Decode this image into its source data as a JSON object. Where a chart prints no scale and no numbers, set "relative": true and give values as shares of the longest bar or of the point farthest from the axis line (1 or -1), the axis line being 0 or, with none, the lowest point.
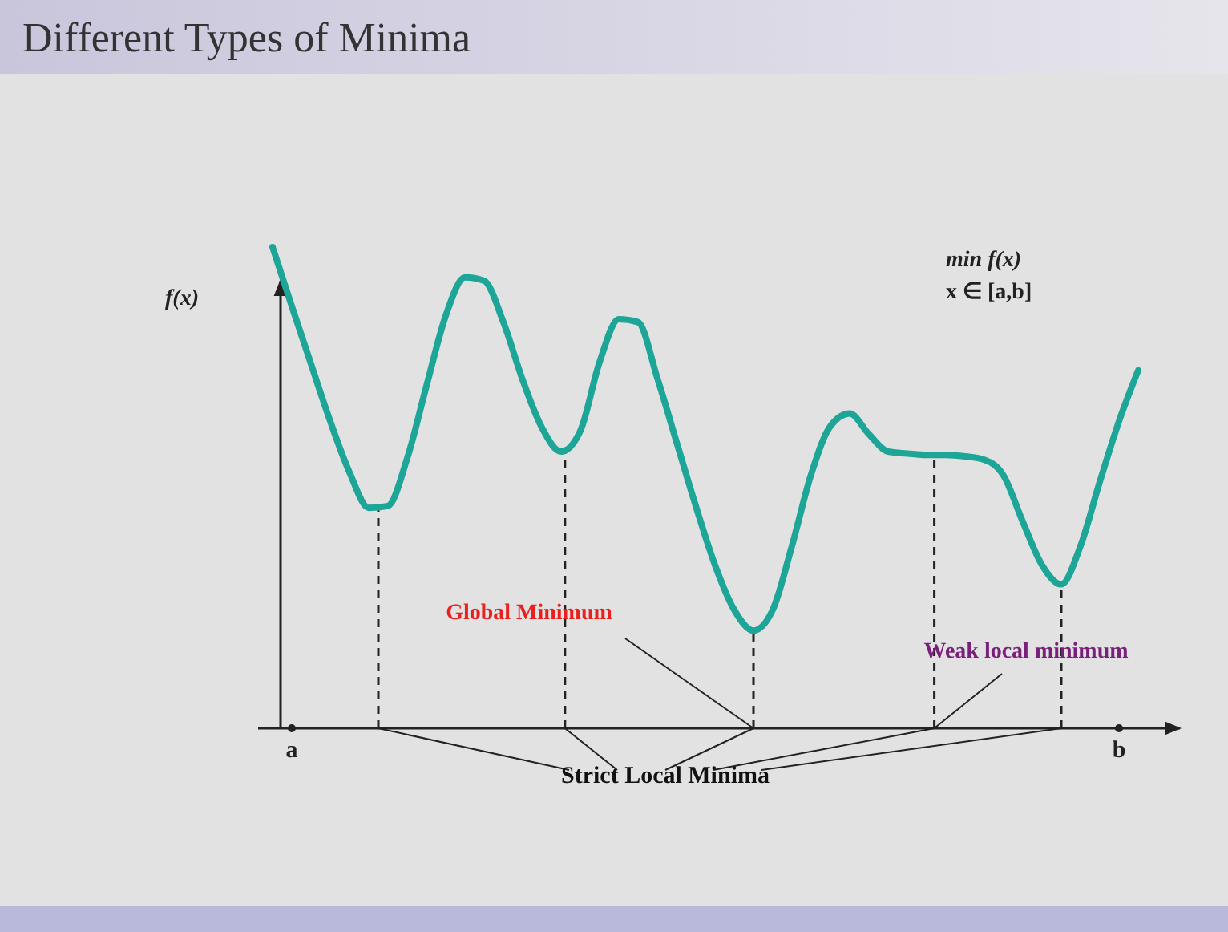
{
  "chart_data": {
    "type": "line",
    "title": "Different Types of Minima",
    "ylabel": "f(x)",
    "relative": true,
    "categories": [
      null,
      "a",
      null,
      null,
      null,
      null,
      null,
      null,
      null,
      null,
      null,
      null,
      null,
      null,
      null,
      null,
      null,
      null,
      null,
      null,
      null,
      null,
      null,
      null,
      null,
      null,
      null,
      null,
      null,
      null,
      null,
      null,
      null,
      null,
      null,
      null,
      null,
      null,
      null,
      null,
      null,
      null,
      null,
      null,
      "b",
      null
    ],
    "series": [
      {
        "color": "#1da597",
        "values": [
          1.0,
          0.877,
          0.757,
          0.638,
          0.532,
          0.458,
          0.462,
          0.561,
          0.711,
          0.857,
          0.937,
          0.93,
          0.844,
          0.724,
          0.625,
          0.575,
          0.618,
          0.761,
          0.85,
          0.844,
          0.728,
          0.595,
          0.462,
          0.339,
          0.246,
          0.203,
          0.246,
          0.379,
          0.528,
          0.628,
          0.654,
          0.611,
          0.575,
          0.571,
          0.568,
          0.568,
          0.565,
          0.558,
          0.525,
          0.429,
          0.339,
          0.299,
          0.379,
          0.512,
          0.638,
          0.744
        ]
      }
    ],
    "annotations": [
      "min f(x)",
      "x ∈ [a,b]",
      "Global Minimum",
      "Weak local minimum",
      "Strict Local Minima"
    ],
    "grid": false,
    "legend": false,
    "marker": "none",
    "line_style": "solid"
  }
}
